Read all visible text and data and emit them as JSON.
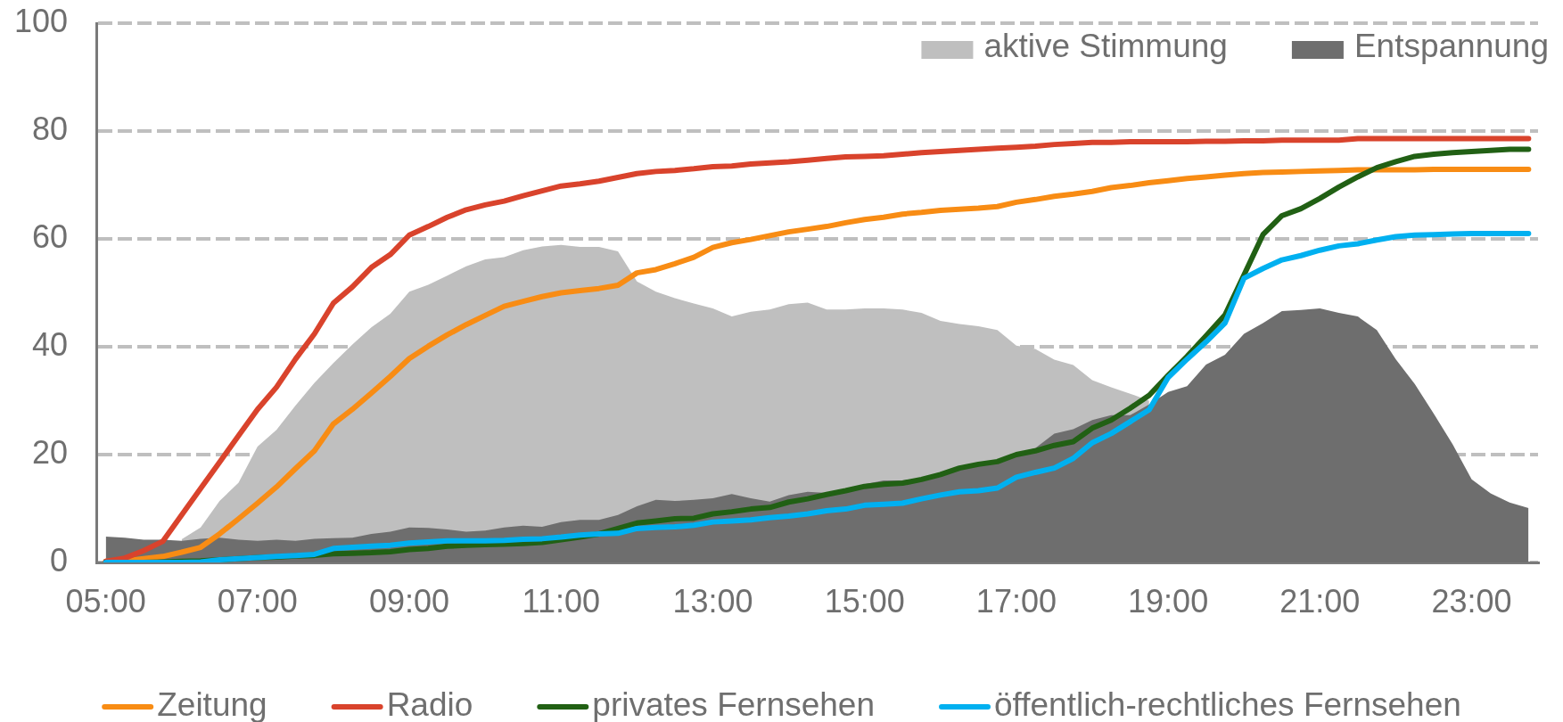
{
  "chart_data": {
    "type": "line",
    "categories": [
      "05:00",
      null,
      null,
      null,
      null,
      null,
      null,
      null,
      "07:00",
      null,
      null,
      null,
      null,
      null,
      null,
      null,
      "09:00",
      null,
      null,
      null,
      null,
      null,
      null,
      null,
      "11:00",
      null,
      null,
      null,
      null,
      null,
      null,
      null,
      "13:00",
      null,
      null,
      null,
      null,
      null,
      null,
      null,
      "15:00",
      null,
      null,
      null,
      null,
      null,
      null,
      null,
      "17:00",
      null,
      null,
      null,
      null,
      null,
      null,
      null,
      "19:00",
      null,
      null,
      null,
      null,
      null,
      null,
      null,
      "21:00",
      null,
      null,
      null,
      null,
      null,
      null,
      null,
      "23:00",
      null,
      null,
      null
    ],
    "ylim": [
      0,
      100
    ],
    "yticks": [
      0,
      20,
      40,
      60,
      80,
      100
    ],
    "grid": "y",
    "legend": "bottom",
    "series": [
      {
        "name": "aktive Stimmung",
        "type": "area",
        "color": "#bfbfbf",
        "values": [
          null,
          null,
          null,
          null,
          4.3,
          6.5,
          11.4,
          14.8,
          21.5,
          24.6,
          29.1,
          33.3,
          37.0,
          40.4,
          43.6,
          46.1,
          50.2,
          51.5,
          53.2,
          54.9,
          56.2,
          56.6,
          57.9,
          58.6,
          58.9,
          58.5,
          58.5,
          57.7,
          52.1,
          50.2,
          49.0,
          48.0,
          47.1,
          45.6,
          46.5,
          46.9,
          47.9,
          48.2,
          46.9,
          46.9,
          47.1,
          47.1,
          46.9,
          46.3,
          44.8,
          44.2,
          43.8,
          43.1,
          40.2,
          39.6,
          37.6,
          36.6,
          33.8,
          32.5,
          31.3,
          30.0,
          null,
          null,
          null,
          null,
          null,
          null,
          null,
          null,
          null,
          null,
          null,
          null,
          null,
          null,
          null,
          null,
          null,
          null,
          null,
          null
        ]
      },
      {
        "name": "Entspannung",
        "type": "area",
        "color": "#6e6e6e",
        "values": [
          4.8,
          4.6,
          4.2,
          4.2,
          4.0,
          4.4,
          4.6,
          4.2,
          4.0,
          4.2,
          4.0,
          4.4,
          4.5,
          4.6,
          5.3,
          5.7,
          6.5,
          6.4,
          6.1,
          5.7,
          5.9,
          6.5,
          6.8,
          6.6,
          7.5,
          7.9,
          7.9,
          8.8,
          10.4,
          11.6,
          11.4,
          11.6,
          11.9,
          12.7,
          11.9,
          11.3,
          12.5,
          13.1,
          12.9,
          13.5,
          14.5,
          15.2,
          15.2,
          15.6,
          16.7,
          17.5,
          18.2,
          18.9,
          20.2,
          21.2,
          23.9,
          24.7,
          26.4,
          27.3,
          27.3,
          29.3,
          31.6,
          32.7,
          36.7,
          38.5,
          42.4,
          44.4,
          46.6,
          46.8,
          47.1,
          46.3,
          45.6,
          43.1,
          37.7,
          33.1,
          27.6,
          21.9,
          15.4,
          12.8,
          11.1,
          10.1
        ]
      },
      {
        "name": "Zeitung",
        "color": "#f88c14",
        "values": [
          0.2,
          0.3,
          0.7,
          1.1,
          1.9,
          2.8,
          5.3,
          8.1,
          11.0,
          14.0,
          17.4,
          20.7,
          25.7,
          28.4,
          31.4,
          34.5,
          37.8,
          40.1,
          42.2,
          44.1,
          45.8,
          47.5,
          48.4,
          49.3,
          50.0,
          50.4,
          50.8,
          51.4,
          53.7,
          54.3,
          55.4,
          56.6,
          58.4,
          59.3,
          59.9,
          60.6,
          61.3,
          61.8,
          62.3,
          63.0,
          63.6,
          64.0,
          64.6,
          64.9,
          65.3,
          65.5,
          65.7,
          66.0,
          66.8,
          67.3,
          67.9,
          68.3,
          68.8,
          69.5,
          69.9,
          70.4,
          70.8,
          71.2,
          71.5,
          71.8,
          72.1,
          72.3,
          72.4,
          72.5,
          72.6,
          72.7,
          72.8,
          72.8,
          72.8,
          72.8,
          72.9,
          72.9,
          72.9,
          72.9,
          72.9,
          72.9
        ]
      },
      {
        "name": "Radio",
        "color": "#d9432c",
        "values": [
          0.2,
          0.8,
          2.2,
          3.9,
          8.8,
          13.7,
          18.6,
          23.5,
          28.4,
          32.5,
          37.7,
          42.4,
          48.1,
          51.1,
          54.7,
          57.1,
          60.7,
          62.3,
          64.0,
          65.4,
          66.3,
          67.0,
          68.0,
          68.9,
          69.8,
          70.2,
          70.7,
          71.4,
          72.1,
          72.5,
          72.7,
          73.0,
          73.4,
          73.5,
          73.9,
          74.1,
          74.3,
          74.6,
          74.9,
          75.2,
          75.3,
          75.4,
          75.7,
          76.0,
          76.2,
          76.4,
          76.6,
          76.8,
          77.0,
          77.2,
          77.5,
          77.7,
          77.9,
          77.9,
          78.0,
          78.0,
          78.0,
          78.0,
          78.1,
          78.1,
          78.2,
          78.2,
          78.3,
          78.3,
          78.3,
          78.3,
          78.6,
          78.6,
          78.6,
          78.6,
          78.6,
          78.6,
          78.6,
          78.6,
          78.6,
          78.6
        ]
      },
      {
        "name": "privates Fernsehen",
        "color": "#216014",
        "values": [
          0,
          0,
          0,
          0.1,
          0.2,
          0.3,
          0.5,
          0.7,
          0.9,
          1.0,
          1.2,
          1.3,
          1.6,
          1.7,
          1.8,
          2.0,
          2.4,
          2.6,
          3.0,
          3.2,
          3.3,
          3.4,
          3.5,
          3.7,
          4.2,
          4.7,
          5.3,
          6.3,
          7.3,
          7.7,
          8.1,
          8.2,
          9.0,
          9.4,
          9.9,
          10.2,
          11.2,
          11.8,
          12.6,
          13.3,
          14.1,
          14.5,
          14.7,
          15.4,
          16.3,
          17.5,
          18.2,
          18.7,
          20.0,
          20.7,
          21.7,
          22.4,
          24.9,
          26.4,
          28.6,
          31.0,
          34.7,
          38.2,
          42.0,
          45.9,
          53.3,
          60.8,
          64.3,
          65.6,
          67.5,
          69.6,
          71.5,
          73.2,
          74.3,
          75.3,
          75.7,
          76.0,
          76.2,
          76.4,
          76.6,
          76.6
        ]
      },
      {
        "name": "öffentlich-rechtliches Fernsehen",
        "color": "#00b0f0",
        "values": [
          0,
          0,
          0,
          0,
          0,
          0.1,
          0.5,
          0.7,
          0.9,
          1.1,
          1.3,
          1.5,
          2.6,
          2.8,
          3.0,
          3.2,
          3.6,
          3.8,
          4.0,
          4.0,
          4.0,
          4.1,
          4.3,
          4.4,
          4.7,
          5.1,
          5.3,
          5.4,
          6.3,
          6.5,
          6.6,
          6.9,
          7.5,
          7.7,
          7.9,
          8.3,
          8.6,
          9.0,
          9.6,
          9.9,
          10.6,
          10.8,
          11.0,
          11.8,
          12.5,
          13.1,
          13.3,
          13.8,
          15.8,
          16.7,
          17.5,
          19.3,
          22.2,
          23.9,
          26.1,
          28.3,
          34.3,
          37.7,
          40.9,
          44.4,
          52.7,
          54.5,
          56.1,
          56.9,
          57.9,
          58.7,
          59.1,
          59.8,
          60.4,
          60.7,
          60.8,
          60.9,
          61.0,
          61.0,
          61.0,
          61.0
        ]
      }
    ]
  }
}
